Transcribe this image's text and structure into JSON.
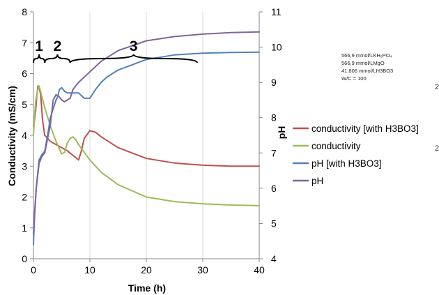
{
  "chart_data": {
    "type": "line",
    "xlabel": "Time (h)",
    "ylabel": "Conductivity (mS/cm)",
    "y2label": "pH",
    "xlim": [
      0,
      40
    ],
    "ylim": [
      0,
      8
    ],
    "y2lim": [
      4,
      11
    ],
    "x_ticks": [
      "0",
      "10",
      "20",
      "30",
      "40"
    ],
    "y_ticks": [
      "0",
      "1",
      "2",
      "3",
      "4",
      "5",
      "6",
      "7",
      "8"
    ],
    "y2_ticks": [
      "4",
      "5",
      "6",
      "7",
      "8",
      "9",
      "10",
      "11"
    ],
    "grid": "vertical",
    "legend_position": "right",
    "annotation_lines": [
      "566,9 mmol/LKH₂PO₄",
      "566,9 mmol/LMgO",
      "41,806 mmol/LH3BO3",
      "W/C = 100"
    ],
    "region_labels": [
      {
        "label": "1",
        "x_start": 0,
        "x_end": 2
      },
      {
        "label": "2",
        "x_start": 2,
        "x_end": 6.5
      },
      {
        "label": "3",
        "x_start": 6.5,
        "x_end": 29
      }
    ],
    "series": [
      {
        "name": "conductivity [with H3BO3]",
        "color": "#c0504d",
        "axis": "left",
        "x": [
          0,
          0.2,
          0.4,
          0.6,
          0.8,
          1.0,
          1.3,
          1.6,
          2.0,
          3.0,
          4.0,
          5.0,
          6.0,
          7.0,
          8.0,
          8.5,
          9.0,
          10.0,
          11.0,
          12.0,
          15.0,
          20.0,
          25.0,
          30.0,
          35.0,
          40.0
        ],
        "y": [
          4.3,
          4.5,
          4.8,
          5.3,
          5.6,
          5.55,
          5.3,
          4.5,
          4.0,
          3.8,
          3.7,
          3.6,
          3.5,
          3.35,
          3.2,
          3.5,
          3.9,
          4.15,
          4.1,
          3.95,
          3.6,
          3.25,
          3.1,
          3.03,
          3.0,
          3.0
        ]
      },
      {
        "name": "conductivity",
        "color": "#9bbb59",
        "axis": "left",
        "x": [
          0,
          0.2,
          0.4,
          0.7,
          1.0,
          1.3,
          2.0,
          3.0,
          4.0,
          5.0,
          5.5,
          6.0,
          6.5,
          7.0,
          7.5,
          8.0,
          10.0,
          12.0,
          15.0,
          20.0,
          25.0,
          30.0,
          35.0,
          40.0
        ],
        "y": [
          4.0,
          4.6,
          5.1,
          5.45,
          5.6,
          5.4,
          4.9,
          4.3,
          3.8,
          3.4,
          3.45,
          3.75,
          3.9,
          3.95,
          3.85,
          3.7,
          3.2,
          2.8,
          2.4,
          2.0,
          1.85,
          1.78,
          1.74,
          1.72
        ]
      },
      {
        "name": "pH [with H3BO3]",
        "color": "#4f81bd",
        "axis": "right",
        "x": [
          0,
          0.2,
          0.5,
          1.0,
          1.5,
          2.0,
          2.5,
          3.0,
          3.5,
          4.0,
          4.3,
          4.6,
          5.0,
          5.5,
          6.0,
          7.0,
          8.0,
          9.0,
          10.0,
          11.0,
          12.0,
          13.0,
          15.0,
          20.0,
          25.0,
          30.0,
          35.0,
          40.0
        ],
        "y": [
          4.4,
          5.2,
          6.0,
          6.8,
          6.95,
          7.05,
          7.5,
          8.0,
          8.25,
          8.5,
          8.6,
          8.8,
          8.85,
          8.75,
          8.7,
          8.7,
          8.7,
          8.55,
          8.55,
          8.8,
          9.0,
          9.15,
          9.35,
          9.65,
          9.78,
          9.83,
          9.85,
          9.86
        ]
      },
      {
        "name": "pH",
        "color": "#8064a2",
        "axis": "right",
        "x": [
          0,
          0.2,
          0.5,
          1.0,
          1.5,
          2.0,
          3.0,
          3.5,
          4.0,
          4.5,
          5.0,
          5.5,
          6.0,
          6.5,
          7.0,
          8.0,
          10.0,
          12.0,
          15.0,
          20.0,
          25.0,
          30.0,
          35.0,
          40.0
        ],
        "y": [
          4.7,
          5.3,
          6.0,
          6.7,
          6.9,
          7.0,
          7.8,
          8.5,
          8.65,
          8.6,
          8.5,
          8.45,
          8.5,
          8.55,
          8.8,
          9.0,
          9.3,
          9.6,
          9.9,
          10.18,
          10.3,
          10.37,
          10.41,
          10.43
        ]
      }
    ]
  }
}
